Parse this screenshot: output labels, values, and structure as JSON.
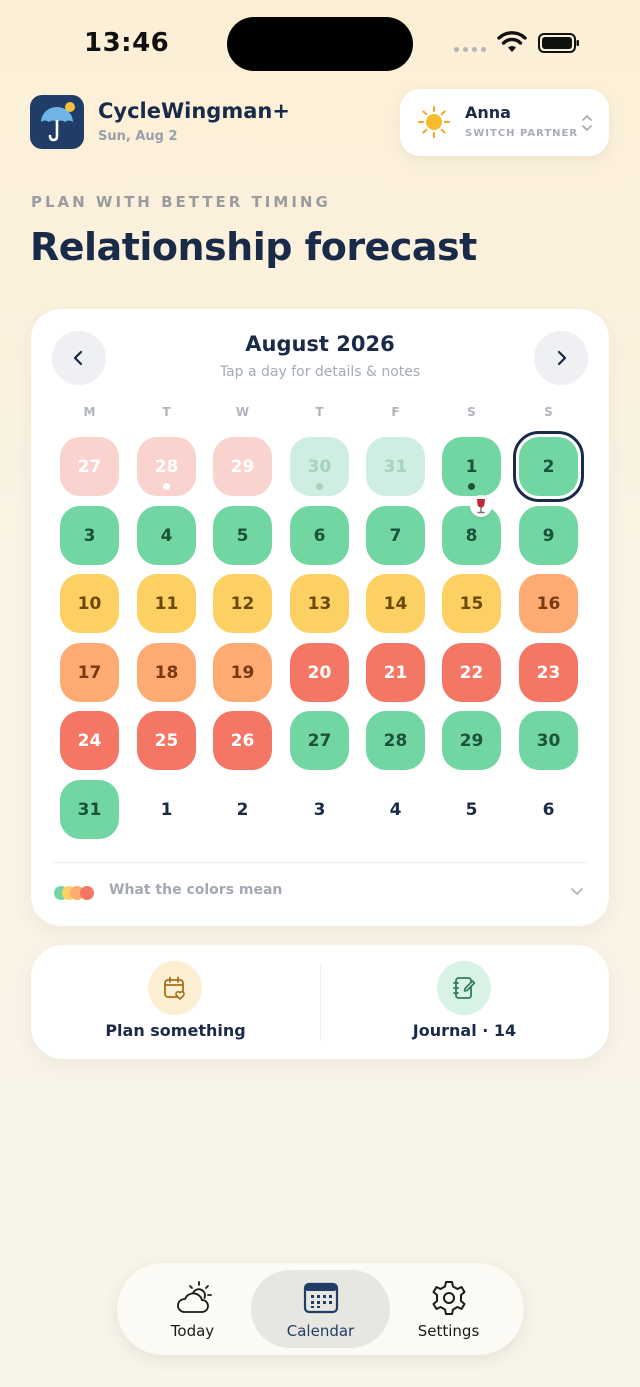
{
  "status_bar": {
    "time": "13:46"
  },
  "header": {
    "app_name": "CycleWingman+",
    "date": "Sun, Aug 2",
    "partner": {
      "name": "Anna",
      "action_label": "SWITCH PARTNER",
      "icon": "sun-icon"
    }
  },
  "eyebrow": "PLAN WITH BETTER TIMING",
  "title": "Relationship forecast",
  "calendar": {
    "month_title": "August 2026",
    "subtitle": "Tap a day for details & notes",
    "weekdays": [
      "M",
      "T",
      "W",
      "T",
      "F",
      "S",
      "S"
    ],
    "colors": {
      "pink-faint": "#fad3cf",
      "green-faint": "#cdeee0",
      "green": "#72d6a3",
      "yellow": "#fdd064",
      "orange": "#fdab73",
      "red": "#f47665",
      "next-month": "#ddf2e8"
    },
    "days": [
      {
        "label": "27",
        "color": "pink-faint"
      },
      {
        "label": "28",
        "color": "pink-faint",
        "dot": true
      },
      {
        "label": "29",
        "color": "pink-faint"
      },
      {
        "label": "30",
        "color": "green-faint",
        "dot": true
      },
      {
        "label": "31",
        "color": "green-faint"
      },
      {
        "label": "1",
        "color": "green",
        "dot": true
      },
      {
        "label": "2",
        "color": "green",
        "today": true
      },
      {
        "label": "3",
        "color": "green"
      },
      {
        "label": "4",
        "color": "green"
      },
      {
        "label": "5",
        "color": "green"
      },
      {
        "label": "6",
        "color": "green"
      },
      {
        "label": "7",
        "color": "green"
      },
      {
        "label": "8",
        "color": "green",
        "badge": "wine-glass-icon"
      },
      {
        "label": "9",
        "color": "green"
      },
      {
        "label": "10",
        "color": "yellow"
      },
      {
        "label": "11",
        "color": "yellow"
      },
      {
        "label": "12",
        "color": "yellow"
      },
      {
        "label": "13",
        "color": "yellow"
      },
      {
        "label": "14",
        "color": "yellow"
      },
      {
        "label": "15",
        "color": "yellow"
      },
      {
        "label": "16",
        "color": "orange"
      },
      {
        "label": "17",
        "color": "orange"
      },
      {
        "label": "18",
        "color": "orange"
      },
      {
        "label": "19",
        "color": "orange"
      },
      {
        "label": "20",
        "color": "red"
      },
      {
        "label": "21",
        "color": "red"
      },
      {
        "label": "22",
        "color": "red"
      },
      {
        "label": "23",
        "color": "red"
      },
      {
        "label": "24",
        "color": "red"
      },
      {
        "label": "25",
        "color": "red"
      },
      {
        "label": "26",
        "color": "red"
      },
      {
        "label": "27",
        "color": "green"
      },
      {
        "label": "28",
        "color": "green"
      },
      {
        "label": "29",
        "color": "green"
      },
      {
        "label": "30",
        "color": "green"
      },
      {
        "label": "31",
        "color": "green"
      },
      {
        "label": "1",
        "color": "next-month"
      },
      {
        "label": "2",
        "color": "next-month"
      },
      {
        "label": "3",
        "color": "next-month"
      },
      {
        "label": "4",
        "color": "next-month"
      },
      {
        "label": "5",
        "color": "next-month"
      },
      {
        "label": "6",
        "color": "next-month"
      }
    ],
    "legend_label": "What the colors mean"
  },
  "actions": [
    {
      "label": "Plan something",
      "icon": "calendar-heart-icon"
    },
    {
      "label": "Journal · 14",
      "icon": "notebook-pen-icon"
    }
  ],
  "tabbar": {
    "tabs": [
      {
        "label": "Today",
        "icon": "partly-sunny-icon"
      },
      {
        "label": "Calendar",
        "icon": "calendar-icon",
        "active": true
      },
      {
        "label": "Settings",
        "icon": "gear-icon"
      }
    ]
  }
}
